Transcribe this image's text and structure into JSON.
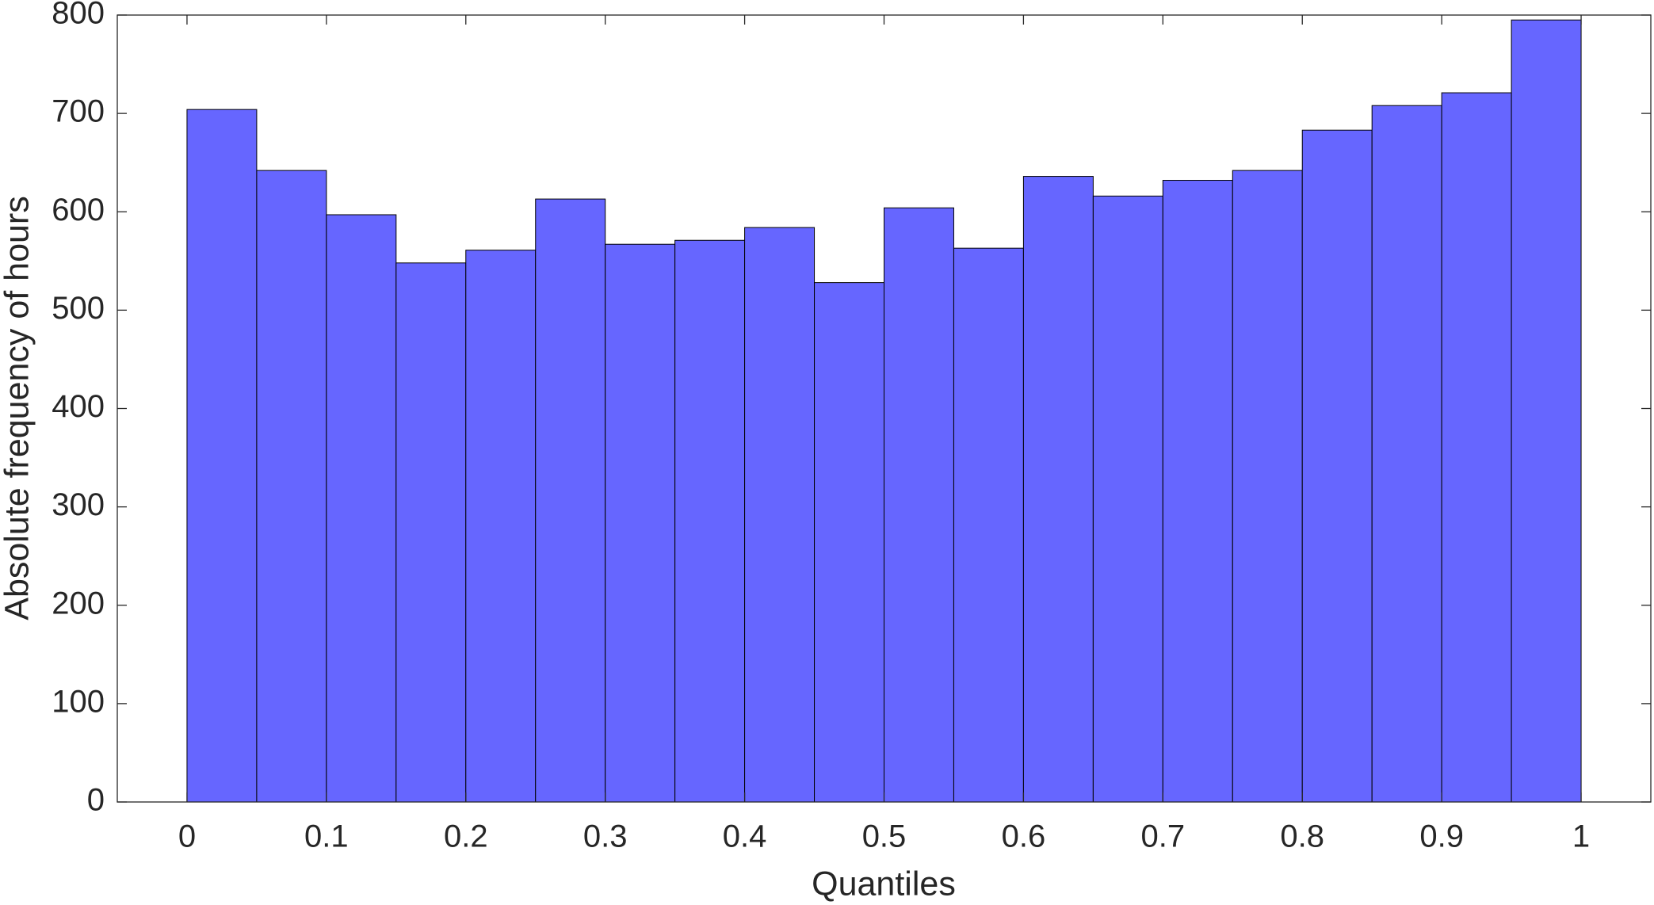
{
  "chart_data": {
    "type": "histogram",
    "xlabel": "Quantiles",
    "ylabel": "Absolute frequency of hours",
    "bins": [
      0,
      0.05,
      0.1,
      0.15,
      0.2,
      0.25,
      0.3,
      0.35,
      0.4,
      0.45,
      0.5,
      0.55,
      0.6,
      0.65,
      0.7,
      0.75,
      0.8,
      0.85,
      0.9,
      0.95,
      1
    ],
    "values": [
      704,
      642,
      597,
      548,
      561,
      613,
      567,
      571,
      584,
      528,
      604,
      563,
      636,
      616,
      632,
      642,
      683,
      708,
      721,
      795
    ],
    "color": "#6666ff",
    "xlim": [
      -0.05,
      1.05
    ],
    "ylim": [
      0,
      800
    ],
    "xticks": [
      0,
      0.1,
      0.2,
      0.3,
      0.4,
      0.5,
      0.6,
      0.7,
      0.8,
      0.9,
      1
    ],
    "yticks": [
      0,
      100,
      200,
      300,
      400,
      500,
      600,
      700,
      800
    ]
  }
}
